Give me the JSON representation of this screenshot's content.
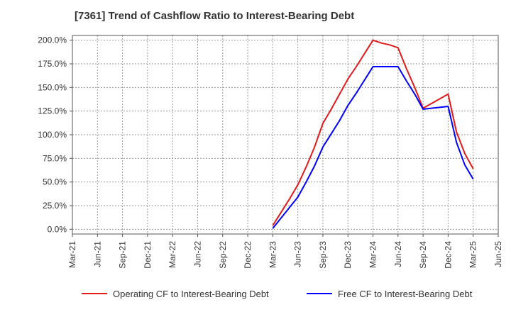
{
  "chart_data": {
    "type": "line",
    "title": "[7361]  Trend of Cashflow Ratio to Interest-Bearing Debt",
    "xlabel": "",
    "ylabel": "",
    "ylim": [
      -5,
      205
    ],
    "yticks": [
      {
        "value": 0,
        "label": "0.0%"
      },
      {
        "value": 25,
        "label": "25.0%"
      },
      {
        "value": 50,
        "label": "50.0%"
      },
      {
        "value": 75,
        "label": "75.0%"
      },
      {
        "value": 100,
        "label": "100.0%"
      },
      {
        "value": 125,
        "label": "125.0%"
      },
      {
        "value": 150,
        "label": "150.0%"
      },
      {
        "value": 175,
        "label": "175.0%"
      },
      {
        "value": 200,
        "label": "200.0%"
      }
    ],
    "x_range": [
      "Mar-21",
      "Jun-25"
    ],
    "xticks": [
      "Mar-21",
      "Jun-21",
      "Sep-21",
      "Dec-21",
      "Mar-22",
      "Jun-22",
      "Sep-22",
      "Dec-22",
      "Mar-23",
      "Jun-23",
      "Sep-23",
      "Dec-23",
      "Mar-24",
      "Jun-24",
      "Sep-24",
      "Dec-24",
      "Mar-25",
      "Jun-25"
    ],
    "grid": true,
    "legend_position": "bottom",
    "series": [
      {
        "name": "Operating CF to Interest-Bearing Debt",
        "color": "#e31a1c",
        "points": [
          {
            "x": "Mar-23",
            "y": 4
          },
          {
            "x": "Apr-23",
            "y": 18
          },
          {
            "x": "May-23",
            "y": 32
          },
          {
            "x": "Jun-23",
            "y": 47
          },
          {
            "x": "Jul-23",
            "y": 66
          },
          {
            "x": "Aug-23",
            "y": 87
          },
          {
            "x": "Sep-23",
            "y": 112
          },
          {
            "x": "Oct-23",
            "y": 127
          },
          {
            "x": "Nov-23",
            "y": 143
          },
          {
            "x": "Dec-23",
            "y": 159
          },
          {
            "x": "Jan-24",
            "y": 172
          },
          {
            "x": "Feb-24",
            "y": 186
          },
          {
            "x": "Mar-24",
            "y": 200
          },
          {
            "x": "Apr-24",
            "y": 197
          },
          {
            "x": "May-24",
            "y": 195
          },
          {
            "x": "Jun-24",
            "y": 192
          },
          {
            "x": "Jul-24",
            "y": 170
          },
          {
            "x": "Aug-24",
            "y": 150
          },
          {
            "x": "Sep-24",
            "y": 128
          },
          {
            "x": "Oct-24",
            "y": 133
          },
          {
            "x": "Nov-24",
            "y": 138
          },
          {
            "x": "Dec-24",
            "y": 143
          },
          {
            "x": "Jan-25",
            "y": 103
          },
          {
            "x": "Feb-25",
            "y": 80
          },
          {
            "x": "Mar-25",
            "y": 64
          }
        ]
      },
      {
        "name": "Free CF to Interest-Bearing Debt",
        "color": "#0000ff",
        "points": [
          {
            "x": "Mar-23",
            "y": 1
          },
          {
            "x": "Apr-23",
            "y": 12
          },
          {
            "x": "May-23",
            "y": 23
          },
          {
            "x": "Jun-23",
            "y": 34
          },
          {
            "x": "Jul-23",
            "y": 50
          },
          {
            "x": "Aug-23",
            "y": 67
          },
          {
            "x": "Sep-23",
            "y": 87
          },
          {
            "x": "Oct-23",
            "y": 101
          },
          {
            "x": "Nov-23",
            "y": 115
          },
          {
            "x": "Dec-23",
            "y": 131
          },
          {
            "x": "Jan-24",
            "y": 144
          },
          {
            "x": "Feb-24",
            "y": 158
          },
          {
            "x": "Mar-24",
            "y": 172
          },
          {
            "x": "Apr-24",
            "y": 172
          },
          {
            "x": "May-24",
            "y": 172
          },
          {
            "x": "Jun-24",
            "y": 172
          },
          {
            "x": "Jul-24",
            "y": 157
          },
          {
            "x": "Aug-24",
            "y": 143
          },
          {
            "x": "Sep-24",
            "y": 127
          },
          {
            "x": "Oct-24",
            "y": 128
          },
          {
            "x": "Nov-24",
            "y": 129
          },
          {
            "x": "Dec-24",
            "y": 130
          },
          {
            "x": "Jan-25",
            "y": 92
          },
          {
            "x": "Feb-25",
            "y": 68
          },
          {
            "x": "Mar-25",
            "y": 53
          }
        ]
      }
    ]
  }
}
